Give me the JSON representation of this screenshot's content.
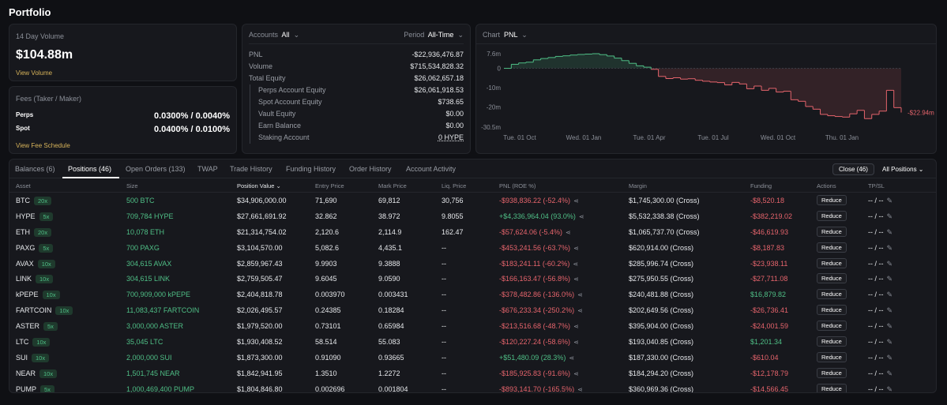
{
  "page_title": "Portfolio",
  "volume": {
    "label": "14 Day Volume",
    "value": "$104.88m",
    "link": "View Volume"
  },
  "fees": {
    "label": "Fees (Taker / Maker)",
    "perps_label": "Perps",
    "perps_value": "0.0300% / 0.0040%",
    "spot_label": "Spot",
    "spot_value": "0.0400% / 0.0100%",
    "link": "View Fee Schedule"
  },
  "account": {
    "accounts_label": "Accounts",
    "accounts_value": "All",
    "period_label": "Period",
    "period_value": "All-Time",
    "rows": [
      {
        "label": "PNL",
        "value": "-$22,936,476.87"
      },
      {
        "label": "Volume",
        "value": "$715,534,828.32"
      },
      {
        "label": "Total Equity",
        "value": "$26,062,657.18"
      },
      {
        "label": "Perps Account Equity",
        "value": "$26,061,918.53"
      },
      {
        "label": "Spot Account Equity",
        "value": "$738.65"
      },
      {
        "label": "Vault Equity",
        "value": "$0.00"
      },
      {
        "label": "Earn Balance",
        "value": "$0.00"
      },
      {
        "label": "Staking Account",
        "value": "0 HYPE"
      }
    ]
  },
  "chart_header": {
    "label": "Chart",
    "value": "PNL"
  },
  "chart_data": {
    "type": "line",
    "title": "PNL",
    "y_ticks": [
      "7.6m",
      "0",
      "-10m",
      "-20m",
      "-30.5m"
    ],
    "x_ticks": [
      "Tue. 01 Oct",
      "Wed. 01 Jan",
      "Tue. 01 Apr",
      "Tue. 01 Jul",
      "Wed. 01 Oct",
      "Thu. 01 Jan"
    ],
    "ylim": [
      -30.5,
      7.6
    ],
    "end_label": "-$22.94m",
    "series": [
      {
        "name": "PNL",
        "values": [
          0,
          2.1,
          2.8,
          3.2,
          4.4,
          5.1,
          5.6,
          6.2,
          6.5,
          6.9,
          7.2,
          7.4,
          7.6,
          7.1,
          6.4,
          5.3,
          4.0,
          2.6,
          1.3,
          0.6,
          -0.5,
          -4.2,
          -5.3,
          -4.9,
          -5.6,
          -5.4,
          -6.2,
          -6.7,
          -7.1,
          -7.4,
          -8.6,
          -7.3,
          -8.1,
          -10.6,
          -9.2,
          -11.4,
          -10.4,
          -12.3,
          -11.9,
          -16.3,
          -17.1,
          -19.8,
          -21.2,
          -23.9,
          -24.6,
          -25.0,
          -25.3,
          -23.6,
          -21.8,
          -26.1,
          -23.9,
          -22.2,
          -11.4,
          -20.4,
          -22.94
        ]
      }
    ]
  },
  "tabs": [
    {
      "label": "Balances (6)"
    },
    {
      "label": "Positions (46)"
    },
    {
      "label": "Open Orders (133)"
    },
    {
      "label": "TWAP"
    },
    {
      "label": "Trade History"
    },
    {
      "label": "Funding History"
    },
    {
      "label": "Order History"
    },
    {
      "label": "Account Activity"
    }
  ],
  "close_button": "Close (46)",
  "positions_filter": "All Positions",
  "columns": [
    "Asset",
    "Size",
    "Position Value",
    "Entry Price",
    "Mark Price",
    "Liq. Price",
    "PNL (ROE %)",
    "Margin",
    "Funding",
    "Actions",
    "TP/SL"
  ],
  "reduce_label": "Reduce",
  "tpsl_value": "-- / --",
  "rows": [
    {
      "asset": "BTC",
      "lev": "20x",
      "size": "500 BTC",
      "value": "$34,906,000.00",
      "entry": "71,690",
      "mark": "69,812",
      "liq": "30,756",
      "pnl": "-$938,836.22 (-52.4%)",
      "pnl_pos": false,
      "margin": "$1,745,300.00 (Cross)",
      "funding": "-$8,520.18",
      "funding_pos": false
    },
    {
      "asset": "HYPE",
      "lev": "5x",
      "size": "709,784 HYPE",
      "value": "$27,661,691.92",
      "entry": "32.862",
      "mark": "38.972",
      "liq": "9.8055",
      "pnl": "+$4,336,964.04 (93.0%)",
      "pnl_pos": true,
      "margin": "$5,532,338.38 (Cross)",
      "funding": "-$382,219.02",
      "funding_pos": false
    },
    {
      "asset": "ETH",
      "lev": "20x",
      "size": "10,078 ETH",
      "value": "$21,314,754.02",
      "entry": "2,120.6",
      "mark": "2,114.9",
      "liq": "162.47",
      "pnl": "-$57,624.06 (-5.4%)",
      "pnl_pos": false,
      "margin": "$1,065,737.70 (Cross)",
      "funding": "-$46,619.93",
      "funding_pos": false
    },
    {
      "asset": "PAXG",
      "lev": "5x",
      "size": "700 PAXG",
      "value": "$3,104,570.00",
      "entry": "5,082.6",
      "mark": "4,435.1",
      "liq": "--",
      "pnl": "-$453,241.56 (-63.7%)",
      "pnl_pos": false,
      "margin": "$620,914.00 (Cross)",
      "funding": "-$8,187.83",
      "funding_pos": false
    },
    {
      "asset": "AVAX",
      "lev": "10x",
      "size": "304,615 AVAX",
      "value": "$2,859,967.43",
      "entry": "9.9903",
      "mark": "9.3888",
      "liq": "--",
      "pnl": "-$183,241.11 (-60.2%)",
      "pnl_pos": false,
      "margin": "$285,996.74 (Cross)",
      "funding": "-$23,938.11",
      "funding_pos": false
    },
    {
      "asset": "LINK",
      "lev": "10x",
      "size": "304,615 LINK",
      "value": "$2,759,505.47",
      "entry": "9.6045",
      "mark": "9.0590",
      "liq": "--",
      "pnl": "-$166,163.47 (-56.8%)",
      "pnl_pos": false,
      "margin": "$275,950.55 (Cross)",
      "funding": "-$27,711.08",
      "funding_pos": false
    },
    {
      "asset": "kPEPE",
      "lev": "10x",
      "size": "700,909,000 kPEPE",
      "value": "$2,404,818.78",
      "entry": "0.003970",
      "mark": "0.003431",
      "liq": "--",
      "pnl": "-$378,482.86 (-136.0%)",
      "pnl_pos": false,
      "margin": "$240,481.88 (Cross)",
      "funding": "$16,879.82",
      "funding_pos": true
    },
    {
      "asset": "FARTCOIN",
      "lev": "10x",
      "size": "11,083,437 FARTCOIN",
      "value": "$2,026,495.57",
      "entry": "0.24385",
      "mark": "0.18284",
      "liq": "--",
      "pnl": "-$676,233.34 (-250.2%)",
      "pnl_pos": false,
      "margin": "$202,649.56 (Cross)",
      "funding": "-$26,736.41",
      "funding_pos": false
    },
    {
      "asset": "ASTER",
      "lev": "5x",
      "size": "3,000,000 ASTER",
      "value": "$1,979,520.00",
      "entry": "0.73101",
      "mark": "0.65984",
      "liq": "--",
      "pnl": "-$213,516.68 (-48.7%)",
      "pnl_pos": false,
      "margin": "$395,904.00 (Cross)",
      "funding": "-$24,001.59",
      "funding_pos": false
    },
    {
      "asset": "LTC",
      "lev": "10x",
      "size": "35,045 LTC",
      "value": "$1,930,408.52",
      "entry": "58.514",
      "mark": "55.083",
      "liq": "--",
      "pnl": "-$120,227.24 (-58.6%)",
      "pnl_pos": false,
      "margin": "$193,040.85 (Cross)",
      "funding": "$1,201.34",
      "funding_pos": true
    },
    {
      "asset": "SUI",
      "lev": "10x",
      "size": "2,000,000 SUI",
      "value": "$1,873,300.00",
      "entry": "0.91090",
      "mark": "0.93665",
      "liq": "--",
      "pnl": "+$51,480.09 (28.3%)",
      "pnl_pos": true,
      "margin": "$187,330.00 (Cross)",
      "funding": "-$610.04",
      "funding_pos": false
    },
    {
      "asset": "NEAR",
      "lev": "10x",
      "size": "1,501,745 NEAR",
      "value": "$1,842,941.95",
      "entry": "1.3510",
      "mark": "1.2272",
      "liq": "--",
      "pnl": "-$185,925.83 (-91.6%)",
      "pnl_pos": false,
      "margin": "$184,294.20 (Cross)",
      "funding": "-$12,178.79",
      "funding_pos": false
    },
    {
      "asset": "PUMP",
      "lev": "5x",
      "size": "1,000,469,400 PUMP",
      "value": "$1,804,846.80",
      "entry": "0.002696",
      "mark": "0.001804",
      "liq": "--",
      "pnl": "-$893,141.70 (-165.5%)",
      "pnl_pos": false,
      "margin": "$360,969.36 (Cross)",
      "funding": "-$14,566.45",
      "funding_pos": false
    }
  ]
}
